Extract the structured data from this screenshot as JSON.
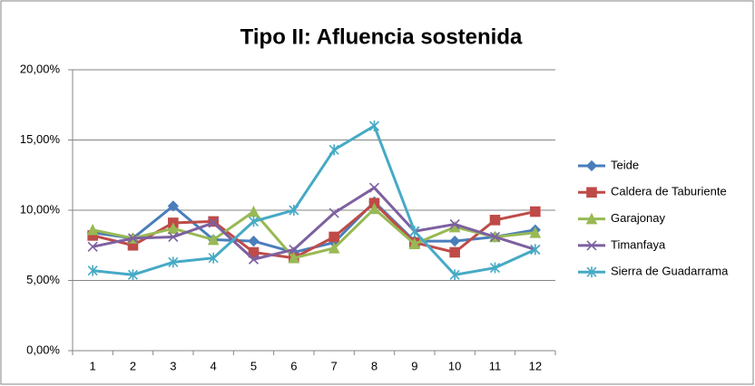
{
  "chart_data": {
    "type": "line",
    "title": "Tipo II: Afluencia sostenida",
    "categories": [
      1,
      2,
      3,
      4,
      5,
      6,
      7,
      8,
      9,
      10,
      11,
      12
    ],
    "series": [
      {
        "name": "Teide",
        "color": "#4a7ebb",
        "marker": "diamond",
        "values": [
          8.4,
          8.0,
          10.3,
          7.9,
          7.8,
          7.0,
          7.7,
          10.6,
          7.8,
          7.8,
          8.1,
          8.6
        ]
      },
      {
        "name": "Caldera de Taburiente",
        "color": "#be4b48",
        "marker": "square",
        "values": [
          8.2,
          7.5,
          9.1,
          9.2,
          7.0,
          6.6,
          8.1,
          10.5,
          7.7,
          7.0,
          9.3,
          9.9
        ]
      },
      {
        "name": "Garajonay",
        "color": "#98b954",
        "marker": "triangle",
        "values": [
          8.6,
          8.0,
          8.7,
          7.9,
          9.9,
          6.6,
          7.3,
          10.1,
          7.6,
          8.8,
          8.1,
          8.4
        ]
      },
      {
        "name": "Timanfaya",
        "color": "#7d60a0",
        "marker": "x",
        "values": [
          7.4,
          8.0,
          8.1,
          9.1,
          6.5,
          7.2,
          9.8,
          11.6,
          8.5,
          9.0,
          8.1,
          7.2
        ]
      },
      {
        "name": "Sierra de Guadarrama",
        "color": "#46aac5",
        "marker": "star",
        "values": [
          5.7,
          5.4,
          6.3,
          6.6,
          9.2,
          10.0,
          14.3,
          16.0,
          8.5,
          5.4,
          5.9,
          7.2
        ]
      }
    ],
    "ylim": [
      0,
      20
    ],
    "yticks": [
      {
        "value": 0,
        "label": "0,00%"
      },
      {
        "value": 5,
        "label": "5,00%"
      },
      {
        "value": 10,
        "label": "10,00%"
      },
      {
        "value": 15,
        "label": "15,00%"
      },
      {
        "value": 20,
        "label": "20,00%"
      }
    ],
    "grid": true,
    "legend": "right"
  }
}
